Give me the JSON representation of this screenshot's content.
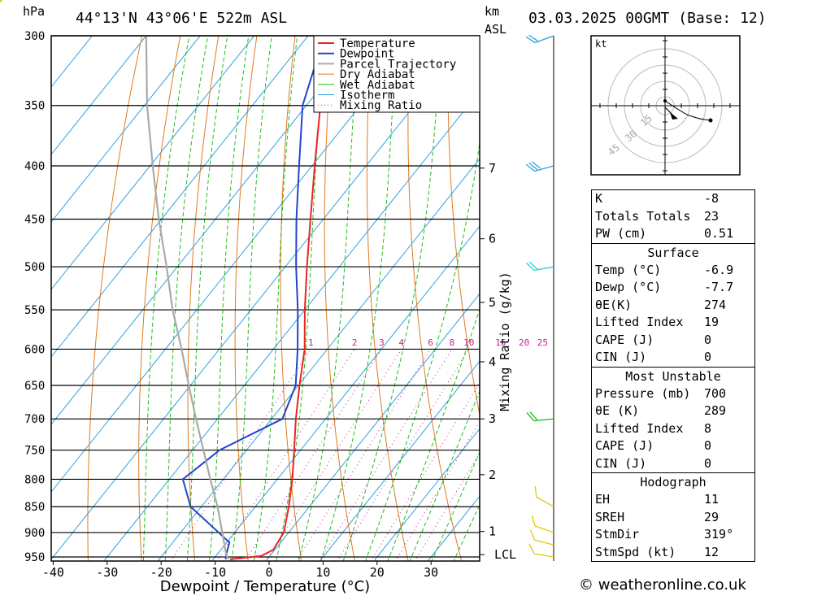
{
  "header": {
    "left_unit": "hPa",
    "location": "44°13'N  43°06'E  522m  ASL",
    "km_label": "km",
    "asl_label": "ASL",
    "datetime": "03.03.2025  00GMT  (Base: 12)"
  },
  "chart_data": {
    "type": "line",
    "xlabel": "Dewpoint / Temperature (°C)",
    "ylabel": "",
    "x_ticks": [
      -40,
      -30,
      -20,
      -10,
      0,
      10,
      20,
      30
    ],
    "pressure_levels": [
      300,
      350,
      400,
      450,
      500,
      550,
      600,
      650,
      700,
      750,
      800,
      850,
      900,
      950
    ],
    "km_ticks": [
      {
        "label": "7",
        "p": 402
      },
      {
        "label": "6",
        "p": 470
      },
      {
        "label": "5",
        "p": 541
      },
      {
        "label": "4",
        "p": 617
      },
      {
        "label": "3",
        "p": 700
      },
      {
        "label": "2",
        "p": 792
      },
      {
        "label": "1",
        "p": 898
      },
      {
        "label": "LCL",
        "p": 945
      }
    ],
    "mixing_ratio_label": "Mixing Ratio (g/kg)",
    "mixing_ratio_ticks": [
      "1",
      "2",
      "3",
      "4",
      "6",
      "8",
      "10",
      "15",
      "20",
      "25"
    ],
    "legend": [
      "Temperature",
      "Dewpoint",
      "Parcel Trajectory",
      "Dry Adiabat",
      "Wet Adiabat",
      "Isotherm",
      "Mixing Ratio"
    ],
    "legend_position": "top-right",
    "colors": {
      "temperature": "#ee2222",
      "dewpoint": "#2244cc",
      "parcel": "#aaaaaa",
      "dry_adiabat": "#e07a20",
      "wet_adiabat": "#1fbf1f",
      "isotherm": "#2aa0dd",
      "mixing_ratio": "#cc1f8f"
    },
    "series": [
      {
        "name": "Temperature",
        "points": [
          [
            955,
            -6.9
          ],
          [
            948,
            -1.6
          ],
          [
            935,
            -0.3
          ],
          [
            900,
            -0.9
          ],
          [
            850,
            -3.8
          ],
          [
            800,
            -7.2
          ],
          [
            750,
            -11.2
          ],
          [
            700,
            -15.5
          ],
          [
            650,
            -19.8
          ],
          [
            600,
            -24.2
          ],
          [
            550,
            -30
          ],
          [
            500,
            -36
          ],
          [
            450,
            -42.4
          ],
          [
            400,
            -49.5
          ],
          [
            350,
            -57.4
          ],
          [
            300,
            -65.5
          ]
        ]
      },
      {
        "name": "Dewpoint",
        "points": [
          [
            955,
            -7.7
          ],
          [
            945,
            -8.3
          ],
          [
            920,
            -9.5
          ],
          [
            850,
            -22
          ],
          [
            800,
            -27.5
          ],
          [
            750,
            -25
          ],
          [
            700,
            -18
          ],
          [
            650,
            -20.5
          ],
          [
            600,
            -25.5
          ],
          [
            550,
            -31.3
          ],
          [
            500,
            -38
          ],
          [
            450,
            -45
          ],
          [
            400,
            -52.4
          ],
          [
            350,
            -60.7
          ],
          [
            300,
            -67
          ]
        ]
      },
      {
        "name": "Parcel Trajectory",
        "points": [
          [
            955,
            -7.2
          ],
          [
            945,
            -8.3
          ],
          [
            900,
            -12.3
          ],
          [
            850,
            -17
          ],
          [
            800,
            -22.4
          ],
          [
            750,
            -28
          ],
          [
            700,
            -34
          ],
          [
            650,
            -40.3
          ],
          [
            600,
            -47
          ],
          [
            550,
            -54.5
          ],
          [
            500,
            -62
          ],
          [
            450,
            -70.5
          ],
          [
            400,
            -79.5
          ],
          [
            350,
            -89.5
          ],
          [
            300,
            -100
          ]
        ]
      }
    ]
  },
  "hodograph": {
    "unit_label": "kt",
    "ring_labels": [
      "15",
      "30",
      "45"
    ]
  },
  "stats": {
    "k_label": "K",
    "k_val": "-8",
    "tt_label": "Totals Totals",
    "tt_val": "23",
    "pw_label": "PW (cm)",
    "pw_val": "0.51",
    "surface": {
      "title": "Surface",
      "temp_label": "Temp (°C)",
      "temp_val": "-6.9",
      "dewp_label": "Dewp (°C)",
      "dewp_val": "-7.7",
      "thetae_label": "θE(K)",
      "thetae_val": "274",
      "li_label": "Lifted Index",
      "li_val": "19",
      "cape_label": "CAPE (J)",
      "cape_val": "0",
      "cin_label": "CIN (J)",
      "cin_val": "0"
    },
    "mu": {
      "title": "Most Unstable",
      "pres_label": "Pressure (mb)",
      "pres_val": "700",
      "thetae_label": "θE (K)",
      "thetae_val": "289",
      "li_label": "Lifted Index",
      "li_val": "8",
      "cape_label": "CAPE (J)",
      "cape_val": "0",
      "cin_label": "CIN (J)",
      "cin_val": "0"
    },
    "hodo": {
      "title": "Hodograph",
      "eh_label": "EH",
      "eh_val": "11",
      "sreh_label": "SREH",
      "sreh_val": "29",
      "stmdir_label": "StmDir",
      "stmdir_val": "319°",
      "stmspd_label": "StmSpd (kt)",
      "stmspd_val": "12"
    }
  },
  "footer": "© weatheronline.co.uk"
}
